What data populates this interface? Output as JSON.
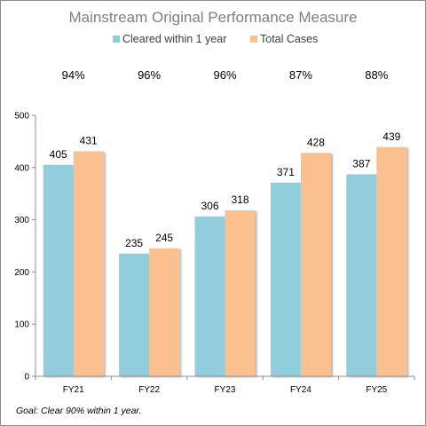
{
  "chart_data": {
    "type": "bar",
    "title": "Mainstream Original Performance Measure",
    "categories": [
      "FY21",
      "FY22",
      "FY23",
      "FY24",
      "FY25"
    ],
    "series": [
      {
        "name": "Cleared within 1 year",
        "values": [
          405,
          235,
          306,
          371,
          387
        ],
        "color": "#92cddc"
      },
      {
        "name": "Total Cases",
        "values": [
          431,
          245,
          318,
          428,
          439
        ],
        "color": "#fac090"
      }
    ],
    "percentages": [
      "94%",
      "96%",
      "96%",
      "87%",
      "88%"
    ],
    "ylim": [
      0,
      500
    ],
    "yticks": [
      0,
      100,
      200,
      300,
      400,
      500
    ],
    "grid": false,
    "legend_position": "top",
    "note": "Goal:  Clear 90% within 1 year."
  }
}
